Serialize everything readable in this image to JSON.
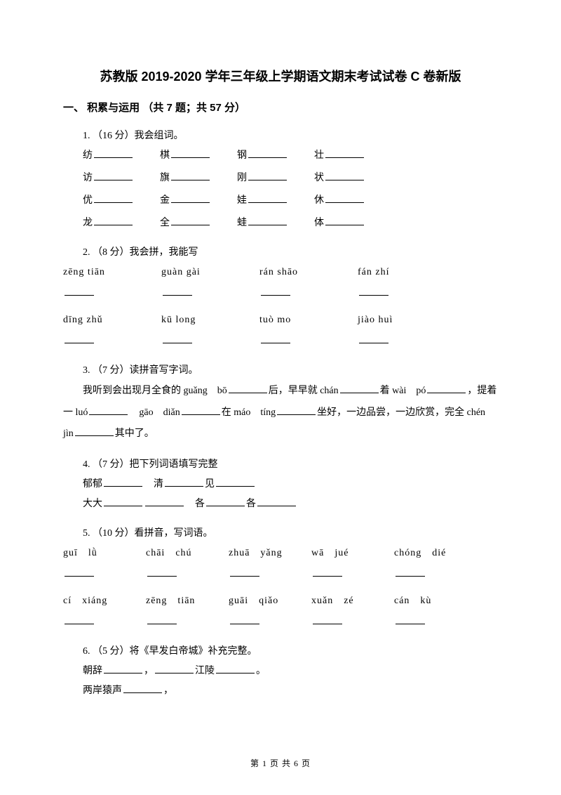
{
  "title": "苏教版 2019-2020 学年三年级上学期语文期末考试试卷 C 卷新版",
  "section1": {
    "header": "一、 积累与运用 （共 7 题；共 57 分）",
    "q1": {
      "num": "1.  （16 分）我会组词。",
      "rows": [
        [
          "纺",
          "棋",
          "钢",
          "壮"
        ],
        [
          "访",
          "旗",
          "刚",
          "状"
        ],
        [
          "优",
          "金",
          "娃",
          "休"
        ],
        [
          "龙",
          "全",
          "蛙",
          "体"
        ]
      ]
    },
    "q2": {
      "num": "2.  （8 分）我会拼，我能写",
      "pinyin1": [
        "zēng tiān",
        "guàn gài",
        "rán shāo",
        "fán zhí"
      ],
      "pinyin2": [
        "dīng zhǔ",
        "kū long",
        "tuò mo",
        "jiào huì"
      ]
    },
    "q3": {
      "num": "3.  （7 分）读拼音写字词。",
      "text_parts": [
        "我听到会出现月全食的 guǎng　bō",
        "后，早早就 chán",
        "着 wài　pó",
        "，提着一 luó",
        "gāo　diǎn",
        "在 máo　tíng",
        "坐好，一边品尝，一边欣赏，完全 chén　jìn",
        "其中了。"
      ]
    },
    "q4": {
      "num": "4.  （7 分）把下列词语填写完整",
      "line1": [
        "郁郁",
        "清",
        "见"
      ],
      "line2": [
        "大大",
        "各",
        "各"
      ]
    },
    "q5": {
      "num": "5.  （10 分）看拼音，写词语。",
      "pinyin1": [
        "guī　lǜ",
        "chāi　chú",
        "zhuā　yǎng",
        "wā　jué",
        "chóng　dié"
      ],
      "pinyin2": [
        "cí　xiáng",
        "zēng　tiān",
        "guāi　qiǎo",
        "xuǎn　zé",
        "cán　kù"
      ]
    },
    "q6": {
      "num": "6.  （5 分）将《早发白帝城》补充完整。",
      "line1_a": "朝辞",
      "line1_b": "，",
      "line1_c": "江陵",
      "line1_d": "。",
      "line2_a": "两岸猿声",
      "line2_b": "，"
    }
  },
  "footer": "第 1 页 共 6 页"
}
